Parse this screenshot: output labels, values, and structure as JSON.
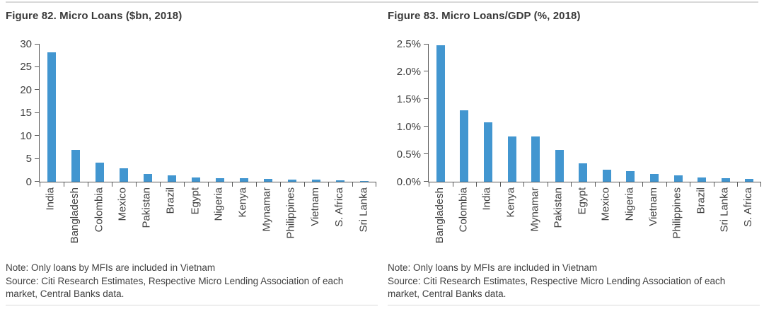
{
  "theme": {
    "bar_color": "#4296d0",
    "axis_color": "#595959",
    "text_color": "#404040",
    "title_color": "#3a3a3a",
    "rule_color": "#d9d9d9",
    "background": "#ffffff"
  },
  "chart_data": [
    {
      "type": "bar",
      "title": "Figure 82. Micro Loans ($bn, 2018)",
      "categories": [
        "India",
        "Bangladesh",
        "Colombia",
        "Mexico",
        "Pakistan",
        "Brazil",
        "Egypt",
        "Nigeria",
        "Kenya",
        "Mynamar",
        "Philippines",
        "Vietnam",
        "S. Africa",
        "Sri Lanka"
      ],
      "values": [
        28.2,
        6.9,
        4.1,
        2.9,
        1.7,
        1.4,
        0.9,
        0.8,
        0.7,
        0.6,
        0.5,
        0.4,
        0.3,
        0.1
      ],
      "xlabel": "",
      "ylabel": "",
      "ylim": [
        0,
        30
      ],
      "yticks": [
        0,
        5,
        10,
        15,
        20,
        25,
        30
      ],
      "ytick_labels": [
        "0",
        "5",
        "10",
        "15",
        "20",
        "25",
        "30"
      ],
      "grid": false,
      "legend": "none",
      "xlabel_rotation": 90,
      "note": "Note: Only loans by MFIs are included in Vietnam",
      "source": "Source: Citi Research Estimates, Respective Micro Lending Association of each market, Central Banks data."
    },
    {
      "type": "bar",
      "title": "Figure 83. Micro Loans/GDP (%, 2018)",
      "categories": [
        "Bangladesh",
        "Colombia",
        "India",
        "Kenya",
        "Mynamar",
        "Pakistan",
        "Egypt",
        "Mexico",
        "Nigeria",
        "Vietnam",
        "Philippines",
        "Brazil",
        "Sri Lanka",
        "S. Africa"
      ],
      "values": [
        2.47,
        1.3,
        1.08,
        0.82,
        0.82,
        0.58,
        0.33,
        0.22,
        0.19,
        0.14,
        0.12,
        0.08,
        0.06,
        0.05
      ],
      "xlabel": "",
      "ylabel": "",
      "ylim": [
        0,
        2.5
      ],
      "yticks": [
        0,
        0.5,
        1.0,
        1.5,
        2.0,
        2.5
      ],
      "ytick_labels": [
        "0.0%",
        "0.5%",
        "1.0%",
        "1.5%",
        "2.0%",
        "2.5%"
      ],
      "grid": false,
      "legend": "none",
      "xlabel_rotation": 90,
      "note": "Note: Only loans by MFIs are included in Vietnam",
      "source": "Source: Citi Research Estimates, Respective Micro Lending Association of each market, Central Banks data."
    }
  ]
}
